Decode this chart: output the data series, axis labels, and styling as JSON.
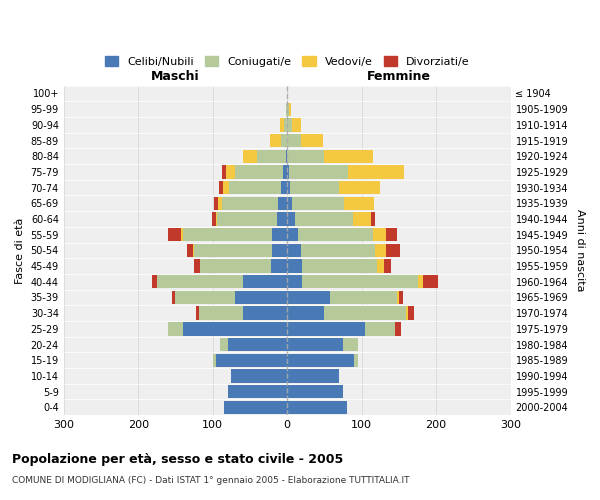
{
  "age_groups": [
    "0-4",
    "5-9",
    "10-14",
    "15-19",
    "20-24",
    "25-29",
    "30-34",
    "35-39",
    "40-44",
    "45-49",
    "50-54",
    "55-59",
    "60-64",
    "65-69",
    "70-74",
    "75-79",
    "80-84",
    "85-89",
    "90-94",
    "95-99",
    "100+"
  ],
  "birth_years": [
    "2000-2004",
    "1995-1999",
    "1990-1994",
    "1985-1989",
    "1980-1984",
    "1975-1979",
    "1970-1974",
    "1965-1969",
    "1960-1964",
    "1955-1959",
    "1950-1954",
    "1945-1949",
    "1940-1944",
    "1935-1939",
    "1930-1934",
    "1925-1929",
    "1920-1924",
    "1915-1919",
    "1910-1914",
    "1905-1909",
    "≤ 1904"
  ],
  "males": {
    "celibi": [
      85,
      80,
      75,
      95,
      80,
      140,
      60,
      70,
      60,
      22,
      20,
      20,
      14,
      12,
      8,
      5,
      2,
      0,
      0,
      0,
      0
    ],
    "coniugati": [
      0,
      0,
      0,
      5,
      10,
      20,
      58,
      80,
      115,
      95,
      105,
      120,
      80,
      75,
      70,
      65,
      38,
      8,
      4,
      1,
      0
    ],
    "vedovi": [
      0,
      0,
      0,
      0,
      0,
      0,
      0,
      0,
      0,
      0,
      1,
      2,
      2,
      6,
      8,
      12,
      20,
      15,
      5,
      1,
      0
    ],
    "divorziati": [
      0,
      0,
      0,
      0,
      0,
      0,
      5,
      5,
      6,
      8,
      8,
      18,
      5,
      5,
      5,
      5,
      0,
      0,
      0,
      0,
      0
    ]
  },
  "females": {
    "nubili": [
      80,
      75,
      70,
      90,
      75,
      105,
      50,
      58,
      20,
      20,
      18,
      15,
      10,
      6,
      4,
      2,
      0,
      0,
      0,
      0,
      0
    ],
    "coniugate": [
      0,
      0,
      0,
      5,
      20,
      40,
      110,
      90,
      155,
      100,
      100,
      100,
      78,
      70,
      65,
      80,
      50,
      18,
      6,
      2,
      0
    ],
    "vedove": [
      0,
      0,
      0,
      0,
      0,
      0,
      2,
      2,
      8,
      10,
      15,
      18,
      25,
      40,
      55,
      75,
      65,
      30,
      12,
      3,
      0
    ],
    "divorziate": [
      0,
      0,
      0,
      0,
      0,
      8,
      8,
      5,
      20,
      10,
      18,
      15,
      5,
      0,
      0,
      0,
      0,
      0,
      0,
      0,
      0
    ]
  },
  "colors": {
    "celibi": "#4a7ab5",
    "coniugati": "#b5c99a",
    "vedovi": "#f5c842",
    "divorziati": "#c0392b"
  },
  "xlim": 300,
  "title": "Popolazione per età, sesso e stato civile - 2005",
  "subtitle": "COMUNE DI MODIGLIANA (FC) - Dati ISTAT 1° gennaio 2005 - Elaborazione TUTTITALIA.IT",
  "xlabel_left": "Maschi",
  "xlabel_right": "Femmine",
  "ylabel_left": "Fasce di età",
  "ylabel_right": "Anni di nascita",
  "legend_labels": [
    "Celibi/Nubili",
    "Coniugati/e",
    "Vedovi/e",
    "Divorziati/e"
  ],
  "bg_color": "#ffffff",
  "plot_bg": "#efefef",
  "grid_color": "#cccccc"
}
